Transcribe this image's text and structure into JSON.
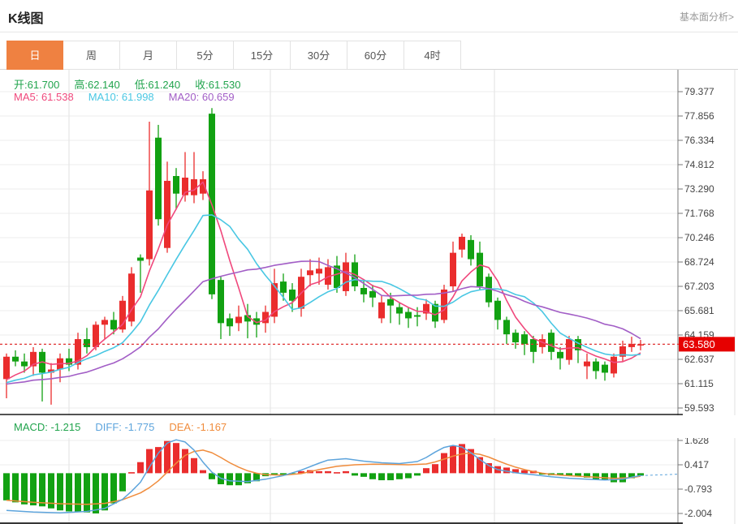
{
  "header": {
    "title": "K线图",
    "link": "基本面分析>"
  },
  "tabs": {
    "items": [
      {
        "label": "日",
        "active": true
      },
      {
        "label": "周",
        "active": false
      },
      {
        "label": "月",
        "active": false
      },
      {
        "label": "5分",
        "active": false
      },
      {
        "label": "15分",
        "active": false
      },
      {
        "label": "30分",
        "active": false
      },
      {
        "label": "60分",
        "active": false
      },
      {
        "label": "4时",
        "active": false
      }
    ]
  },
  "info": {
    "ohlc": [
      {
        "text": "开:61.700",
        "color_key": "text_green"
      },
      {
        "text": "高:62.140",
        "color_key": "text_green"
      },
      {
        "text": "低:61.240",
        "color_key": "text_green"
      },
      {
        "text": "收:61.530",
        "color_key": "text_green"
      }
    ],
    "ma": [
      {
        "text": "MA5: 61.538",
        "color_key": "ma5"
      },
      {
        "text": "MA10: 61.998",
        "color_key": "ma10"
      },
      {
        "text": "MA20: 60.659",
        "color_key": "ma20"
      }
    ],
    "macd": [
      {
        "text": "MACD: -1.215",
        "color_key": "text_green"
      },
      {
        "text": "DIFF: -1.775",
        "color_key": "diff"
      },
      {
        "text": "DEA: -1.167",
        "color_key": "dea"
      }
    ]
  },
  "colors": {
    "up_red": "#ea2d2d",
    "down_green": "#12a112",
    "text_green": "#21a44d",
    "ma5": "#f0487c",
    "ma10": "#49c7e3",
    "ma20": "#a25ec6",
    "diff": "#5da4dc",
    "dea": "#f08c3c",
    "badge_red": "#e60000",
    "dotted_line": "#e03131",
    "grid": "#ececec",
    "vgrid": "#e2e2e2",
    "axis": "#777777",
    "dark_border": "#1a1a1a"
  },
  "chart_data": {
    "type": "candlestick",
    "title": "K线图 (daily candlestick with MA5/MA10/MA20 and MACD)",
    "price_axis_labels": [
      "79.377",
      "77.856",
      "76.334",
      "74.812",
      "73.290",
      "71.768",
      "70.246",
      "68.724",
      "67.203",
      "65.681",
      "64.159",
      "62.637",
      "61.115",
      "59.593"
    ],
    "price_axis_top": 79.377,
    "price_axis_step": 1.522,
    "last_price": "63.580",
    "last_price_value": 63.58,
    "macd_axis_labels": [
      "1.628",
      "0.417",
      "-0.793",
      "-2.004"
    ],
    "macd_axis_top": 1.628,
    "macd_axis_step": 1.21,
    "vertical_gridlines_x": [
      85,
      333,
      609
    ],
    "prehistory_close": 61.0,
    "candles_ohlc": [
      [
        61.4,
        63.0,
        60.2,
        62.8
      ],
      [
        62.8,
        63.2,
        62.2,
        62.5
      ],
      [
        62.5,
        63.0,
        61.8,
        62.2
      ],
      [
        62.2,
        63.4,
        61.6,
        63.1
      ],
      [
        63.1,
        63.3,
        60.0,
        61.8
      ],
      [
        61.8,
        62.4,
        59.8,
        62.0
      ],
      [
        62.0,
        63.0,
        61.2,
        62.7
      ],
      [
        62.7,
        63.3,
        61.9,
        62.3
      ],
      [
        62.3,
        64.3,
        62.0,
        63.9
      ],
      [
        63.9,
        64.6,
        63.0,
        63.4
      ],
      [
        63.4,
        65.0,
        63.2,
        64.8
      ],
      [
        64.8,
        65.3,
        63.9,
        65.1
      ],
      [
        65.1,
        65.6,
        64.2,
        64.5
      ],
      [
        64.5,
        66.6,
        64.3,
        66.3
      ],
      [
        65.0,
        68.4,
        64.7,
        68.0
      ],
      [
        69.0,
        69.2,
        66.8,
        68.8
      ],
      [
        68.9,
        77.5,
        68.5,
        73.2
      ],
      [
        76.5,
        77.3,
        71.0,
        71.4
      ],
      [
        69.6,
        75.0,
        69.3,
        73.8
      ],
      [
        74.1,
        74.6,
        72.0,
        73.0
      ],
      [
        72.9,
        75.6,
        72.5,
        74.0
      ],
      [
        72.9,
        75.6,
        72.4,
        73.9
      ],
      [
        73.0,
        74.4,
        72.6,
        73.9
      ],
      [
        78.0,
        78.35,
        66.4,
        66.7
      ],
      [
        67.6,
        67.8,
        63.9,
        64.9
      ],
      [
        65.2,
        65.5,
        64.1,
        64.7
      ],
      [
        64.9,
        66.0,
        64.4,
        65.3
      ],
      [
        65.4,
        66.1,
        63.95,
        65.0
      ],
      [
        65.2,
        65.6,
        64.0,
        64.8
      ],
      [
        64.9,
        66.0,
        64.3,
        65.6
      ],
      [
        65.3,
        68.3,
        64.9,
        67.4
      ],
      [
        67.5,
        68.0,
        66.3,
        66.8
      ],
      [
        67.0,
        67.4,
        65.6,
        66.3
      ],
      [
        65.8,
        68.3,
        65.3,
        67.8
      ],
      [
        67.9,
        68.9,
        67.2,
        68.2
      ],
      [
        68.0,
        69.0,
        67.3,
        68.3
      ],
      [
        67.3,
        68.9,
        67.0,
        68.4
      ],
      [
        68.5,
        69.1,
        66.8,
        67.1
      ],
      [
        66.9,
        69.3,
        66.6,
        68.7
      ],
      [
        68.7,
        69.2,
        66.9,
        67.2
      ],
      [
        67.1,
        67.6,
        66.2,
        66.7
      ],
      [
        66.9,
        67.3,
        65.9,
        66.5
      ],
      [
        65.2,
        66.6,
        64.9,
        66.2
      ],
      [
        66.4,
        66.8,
        64.9,
        66.0
      ],
      [
        65.9,
        66.2,
        64.8,
        65.5
      ],
      [
        65.6,
        65.9,
        64.6,
        65.2
      ],
      [
        65.4,
        65.9,
        64.7,
        65.3
      ],
      [
        65.5,
        66.4,
        65.1,
        66.1
      ],
      [
        66.1,
        66.3,
        64.6,
        65.0
      ],
      [
        65.1,
        67.3,
        64.9,
        67.0
      ],
      [
        67.2,
        70.0,
        66.9,
        69.3
      ],
      [
        69.5,
        70.5,
        69.0,
        70.3
      ],
      [
        70.1,
        70.4,
        68.5,
        68.9
      ],
      [
        69.3,
        70.0,
        67.0,
        67.2
      ],
      [
        67.8,
        68.0,
        65.9,
        66.2
      ],
      [
        66.3,
        66.5,
        64.5,
        65.1
      ],
      [
        65.1,
        65.3,
        63.6,
        64.2
      ],
      [
        64.3,
        64.5,
        63.3,
        63.7
      ],
      [
        64.2,
        64.4,
        62.9,
        63.6
      ],
      [
        63.9,
        64.1,
        62.4,
        63.1
      ],
      [
        63.4,
        64.2,
        63.0,
        63.9
      ],
      [
        64.3,
        64.5,
        62.6,
        63.1
      ],
      [
        63.1,
        63.4,
        62.0,
        62.7
      ],
      [
        62.6,
        64.1,
        62.3,
        63.9
      ],
      [
        63.9,
        64.1,
        62.4,
        63.2
      ],
      [
        62.2,
        63.0,
        61.4,
        62.5
      ],
      [
        62.5,
        62.7,
        61.4,
        61.9
      ],
      [
        62.3,
        62.5,
        61.3,
        61.8
      ],
      [
        61.75,
        63.0,
        61.5,
        62.8
      ],
      [
        62.8,
        63.8,
        62.5,
        63.45
      ],
      [
        63.4,
        64.05,
        63.1,
        63.6
      ],
      [
        63.5,
        63.85,
        63.2,
        63.58
      ]
    ],
    "ma_periods": [
      5,
      10,
      20
    ],
    "macd_histogram": [
      -1.35,
      -1.45,
      -1.55,
      -1.6,
      -1.65,
      -1.75,
      -1.85,
      -1.9,
      -1.9,
      -1.95,
      -2.0,
      -1.85,
      -1.5,
      -0.9,
      0.05,
      0.55,
      1.2,
      1.3,
      1.6,
      1.5,
      1.2,
      0.75,
      0.15,
      -0.3,
      -0.55,
      -0.6,
      -0.6,
      -0.5,
      -0.4,
      -0.15,
      -0.1,
      -0.1,
      -0.05,
      0.1,
      0.15,
      0.1,
      0.1,
      0.05,
      0.1,
      -0.12,
      -0.18,
      -0.3,
      -0.35,
      -0.35,
      -0.3,
      -0.25,
      -0.12,
      0.25,
      0.45,
      1.0,
      1.35,
      1.45,
      1.2,
      0.8,
      0.5,
      0.35,
      0.28,
      0.2,
      0.15,
      0.12,
      -0.06,
      -0.1,
      -0.1,
      -0.12,
      -0.15,
      -0.22,
      -0.3,
      -0.35,
      -0.45,
      -0.45,
      -0.25,
      -0.12
    ],
    "diff_line_points": [
      [
        0,
        -1.85
      ],
      [
        3,
        -1.93
      ],
      [
        6,
        -1.97
      ],
      [
        9,
        -1.9
      ],
      [
        11,
        -1.75
      ],
      [
        13,
        -1.3
      ],
      [
        14,
        -0.9
      ],
      [
        15,
        -0.45
      ],
      [
        16,
        0.3
      ],
      [
        17,
        1.0
      ],
      [
        18,
        1.5
      ],
      [
        19,
        1.66
      ],
      [
        20,
        1.55
      ],
      [
        21,
        1.15
      ],
      [
        22,
        0.55
      ],
      [
        23,
        0.05
      ],
      [
        24,
        -0.25
      ],
      [
        25,
        -0.38
      ],
      [
        27,
        -0.42
      ],
      [
        29,
        -0.3
      ],
      [
        31,
        -0.12
      ],
      [
        33,
        0.15
      ],
      [
        35,
        0.5
      ],
      [
        36,
        0.65
      ],
      [
        38,
        0.72
      ],
      [
        40,
        0.6
      ],
      [
        42,
        0.52
      ],
      [
        44,
        0.48
      ],
      [
        46,
        0.58
      ],
      [
        47,
        0.78
      ],
      [
        48,
        1.05
      ],
      [
        49,
        1.28
      ],
      [
        50,
        1.38
      ],
      [
        51,
        1.3
      ],
      [
        52,
        1.02
      ],
      [
        53,
        0.68
      ],
      [
        54,
        0.38
      ],
      [
        55,
        0.18
      ],
      [
        57,
        0.02
      ],
      [
        59,
        -0.08
      ],
      [
        61,
        -0.18
      ],
      [
        63,
        -0.25
      ],
      [
        65,
        -0.3
      ],
      [
        67,
        -0.34
      ],
      [
        69,
        -0.3
      ],
      [
        70,
        -0.2
      ],
      [
        71,
        -0.12
      ]
    ],
    "dea_line_points": [
      [
        0,
        -1.35
      ],
      [
        3,
        -1.45
      ],
      [
        6,
        -1.52
      ],
      [
        9,
        -1.55
      ],
      [
        11,
        -1.5
      ],
      [
        13,
        -1.32
      ],
      [
        15,
        -0.98
      ],
      [
        16,
        -0.72
      ],
      [
        17,
        -0.38
      ],
      [
        18,
        0.05
      ],
      [
        19,
        0.5
      ],
      [
        20,
        0.88
      ],
      [
        21,
        1.08
      ],
      [
        22,
        1.15
      ],
      [
        23,
        1.02
      ],
      [
        24,
        0.78
      ],
      [
        25,
        0.52
      ],
      [
        26,
        0.3
      ],
      [
        27,
        0.12
      ],
      [
        28,
        0.0
      ],
      [
        29,
        -0.08
      ],
      [
        31,
        -0.1
      ],
      [
        33,
        -0.02
      ],
      [
        35,
        0.18
      ],
      [
        37,
        0.34
      ],
      [
        39,
        0.42
      ],
      [
        41,
        0.45
      ],
      [
        43,
        0.44
      ],
      [
        45,
        0.42
      ],
      [
        47,
        0.46
      ],
      [
        48,
        0.56
      ],
      [
        49,
        0.7
      ],
      [
        50,
        0.85
      ],
      [
        51,
        0.96
      ],
      [
        52,
        1.0
      ],
      [
        53,
        0.94
      ],
      [
        54,
        0.8
      ],
      [
        55,
        0.62
      ],
      [
        56,
        0.45
      ],
      [
        57,
        0.3
      ],
      [
        58,
        0.18
      ],
      [
        59,
        0.08
      ],
      [
        60,
        0.0
      ],
      [
        61,
        -0.06
      ],
      [
        62,
        -0.1
      ],
      [
        64,
        -0.15
      ],
      [
        66,
        -0.2
      ],
      [
        68,
        -0.26
      ],
      [
        70,
        -0.22
      ],
      [
        71,
        -0.15
      ]
    ]
  }
}
